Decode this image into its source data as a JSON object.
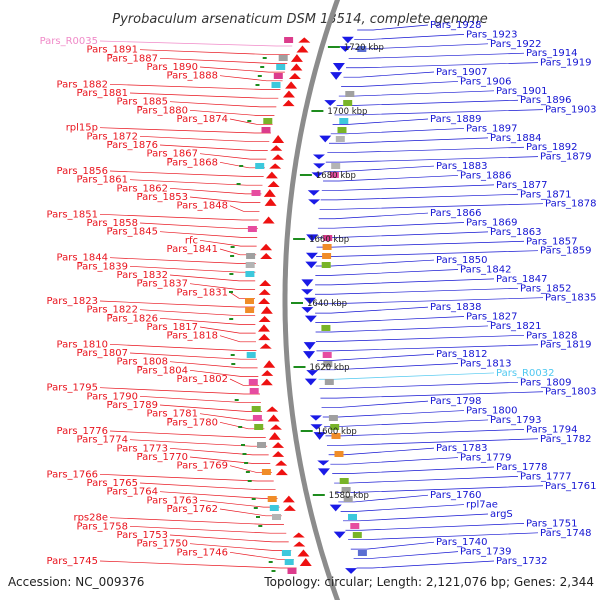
{
  "title": "Pyrobaculum arsenaticum DSM 13514, complete genome",
  "accession": "Accession: NC_009376",
  "summary": "Topology: circular; Length: 2,121,076 bp; Genes: 2,344",
  "colors": {
    "left_label": "#e8141e",
    "left_rna_label": "#f08ac8",
    "right_label": "#1414d2",
    "right_rna_label": "#50c8f0",
    "backbone": "#8c8c8c",
    "tick_mark": "#1e8c1e",
    "rev_strand_arrow": "#ee1111",
    "fwd_strand_arrow": "#1a1ae6"
  },
  "ticks": [
    "1720 kbp",
    "1700 kbp",
    "1680 kbp",
    "1660 kbp",
    "1640 kbp",
    "1620 kbp",
    "1600 kbp",
    "1580 kbp"
  ],
  "left_labels": [
    {
      "text": "Pars_R0035",
      "type": "rna"
    },
    {
      "text": "Pars_1891"
    },
    {
      "text": "Pars_1887"
    },
    {
      "text": "Pars_1890"
    },
    {
      "text": "Pars_1888"
    },
    {
      "text": "Pars_1882"
    },
    {
      "text": "Pars_1881"
    },
    {
      "text": "Pars_1885"
    },
    {
      "text": "Pars_1880"
    },
    {
      "text": "Pars_1874"
    },
    {
      "text": "rpl15p"
    },
    {
      "text": "Pars_1872"
    },
    {
      "text": "Pars_1876"
    },
    {
      "text": "Pars_1867"
    },
    {
      "text": "Pars_1868"
    },
    {
      "text": "Pars_1856"
    },
    {
      "text": "Pars_1861"
    },
    {
      "text": "Pars_1862"
    },
    {
      "text": "Pars_1853"
    },
    {
      "text": "Pars_1848"
    },
    {
      "text": "Pars_1851"
    },
    {
      "text": "Pars_1858"
    },
    {
      "text": "Pars_1845"
    },
    {
      "text": "rfc"
    },
    {
      "text": "Pars_1841"
    },
    {
      "text": "Pars_1844"
    },
    {
      "text": "Pars_1839"
    },
    {
      "text": "Pars_1832"
    },
    {
      "text": "Pars_1837"
    },
    {
      "text": "Pars_1831"
    },
    {
      "text": "Pars_1823"
    },
    {
      "text": "Pars_1822"
    },
    {
      "text": "Pars_1826"
    },
    {
      "text": "Pars_1817"
    },
    {
      "text": "Pars_1818"
    },
    {
      "text": "Pars_1810"
    },
    {
      "text": "Pars_1807"
    },
    {
      "text": "Pars_1808"
    },
    {
      "text": "Pars_1804"
    },
    {
      "text": "Pars_1802"
    },
    {
      "text": "Pars_1795"
    },
    {
      "text": "Pars_1790"
    },
    {
      "text": "Pars_1789"
    },
    {
      "text": "Pars_1781"
    },
    {
      "text": "Pars_1780"
    },
    {
      "text": "Pars_1776"
    },
    {
      "text": "Pars_1774"
    },
    {
      "text": "Pars_1773"
    },
    {
      "text": "Pars_1770"
    },
    {
      "text": "Pars_1769"
    },
    {
      "text": "Pars_1766"
    },
    {
      "text": "Pars_1765"
    },
    {
      "text": "Pars_1764"
    },
    {
      "text": "Pars_1763"
    },
    {
      "text": "Pars_1762"
    },
    {
      "text": "rps28e"
    },
    {
      "text": "Pars_1758"
    },
    {
      "text": "Pars_1753"
    },
    {
      "text": "Pars_1750"
    },
    {
      "text": "Pars_1746"
    },
    {
      "text": "Pars_1745"
    }
  ],
  "right_labels": [
    {
      "text": "Pars_1928"
    },
    {
      "text": "Pars_1923"
    },
    {
      "text": "Pars_1922"
    },
    {
      "text": "Pars_1914"
    },
    {
      "text": "Pars_1919"
    },
    {
      "text": "Pars_1907"
    },
    {
      "text": "Pars_1906"
    },
    {
      "text": "Pars_1901"
    },
    {
      "text": "Pars_1896"
    },
    {
      "text": "Pars_1903"
    },
    {
      "text": "Pars_1889"
    },
    {
      "text": "Pars_1897"
    },
    {
      "text": "Pars_1884"
    },
    {
      "text": "Pars_1892"
    },
    {
      "text": "Pars_1879"
    },
    {
      "text": "Pars_1883"
    },
    {
      "text": "Pars_1886"
    },
    {
      "text": "Pars_1877"
    },
    {
      "text": "Pars_1871"
    },
    {
      "text": "Pars_1878"
    },
    {
      "text": "Pars_1866"
    },
    {
      "text": "Pars_1869"
    },
    {
      "text": "Pars_1863"
    },
    {
      "text": "Pars_1857"
    },
    {
      "text": "Pars_1859"
    },
    {
      "text": "Pars_1850"
    },
    {
      "text": "Pars_1842"
    },
    {
      "text": "Pars_1847"
    },
    {
      "text": "Pars_1852"
    },
    {
      "text": "Pars_1835"
    },
    {
      "text": "Pars_1838"
    },
    {
      "text": "Pars_1827"
    },
    {
      "text": "Pars_1821"
    },
    {
      "text": "Pars_1828"
    },
    {
      "text": "Pars_1819"
    },
    {
      "text": "Pars_1812"
    },
    {
      "text": "Pars_1813"
    },
    {
      "text": "Pars_R0032",
      "type": "rna"
    },
    {
      "text": "Pars_1809"
    },
    {
      "text": "Pars_1803"
    },
    {
      "text": "Pars_1798"
    },
    {
      "text": "Pars_1800"
    },
    {
      "text": "Pars_1793"
    },
    {
      "text": "Pars_1794"
    },
    {
      "text": "Pars_1782"
    },
    {
      "text": "Pars_1783"
    },
    {
      "text": "Pars_1779"
    },
    {
      "text": "Pars_1778"
    },
    {
      "text": "Pars_1777"
    },
    {
      "text": "Pars_1761"
    },
    {
      "text": "Pars_1760"
    },
    {
      "text": "rpl7ae"
    },
    {
      "text": "argS"
    },
    {
      "text": "Pars_1751"
    },
    {
      "text": "Pars_1748"
    },
    {
      "text": "Pars_1740"
    },
    {
      "text": "Pars_1739"
    },
    {
      "text": "Pars_1732"
    }
  ]
}
